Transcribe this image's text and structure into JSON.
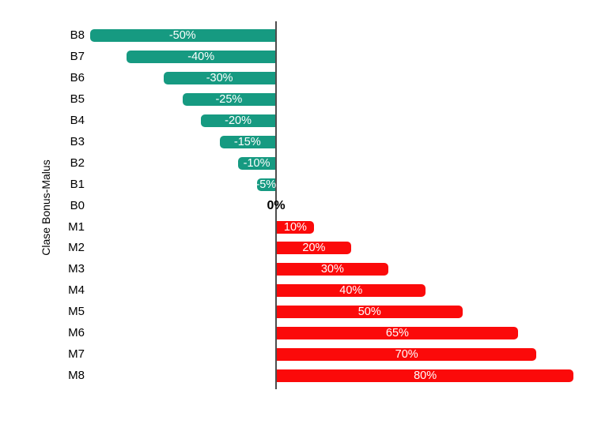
{
  "chart_data": {
    "type": "bar",
    "orientation": "horizontal",
    "title": "",
    "xlabel": "",
    "ylabel": "Clase Bonus-Malus",
    "categories": [
      "B8",
      "B7",
      "B6",
      "B5",
      "B4",
      "B3",
      "B2",
      "B1",
      "B0",
      "M1",
      "M2",
      "M3",
      "M4",
      "M5",
      "M6",
      "M7",
      "M8"
    ],
    "values": [
      -50,
      -40,
      -30,
      -25,
      -20,
      -15,
      -10,
      -5,
      0,
      10,
      20,
      30,
      40,
      50,
      65,
      70,
      80
    ],
    "value_labels": [
      "-50%",
      "-40%",
      "-30%",
      "-25%",
      "-20%",
      "-15%",
      "-10%",
      "-5%",
      "0%",
      "10%",
      "20%",
      "30%",
      "40%",
      "50%",
      "65%",
      "70%",
      "80%"
    ],
    "xlim": [
      -55,
      90
    ],
    "grid": false,
    "legend": null,
    "colors": {
      "bonus": "#169A81",
      "malus": "#FB0A0A",
      "bar_label": "#FFFFFF",
      "zero_label": "#000000",
      "axis_line": "#4D4D4D"
    }
  }
}
